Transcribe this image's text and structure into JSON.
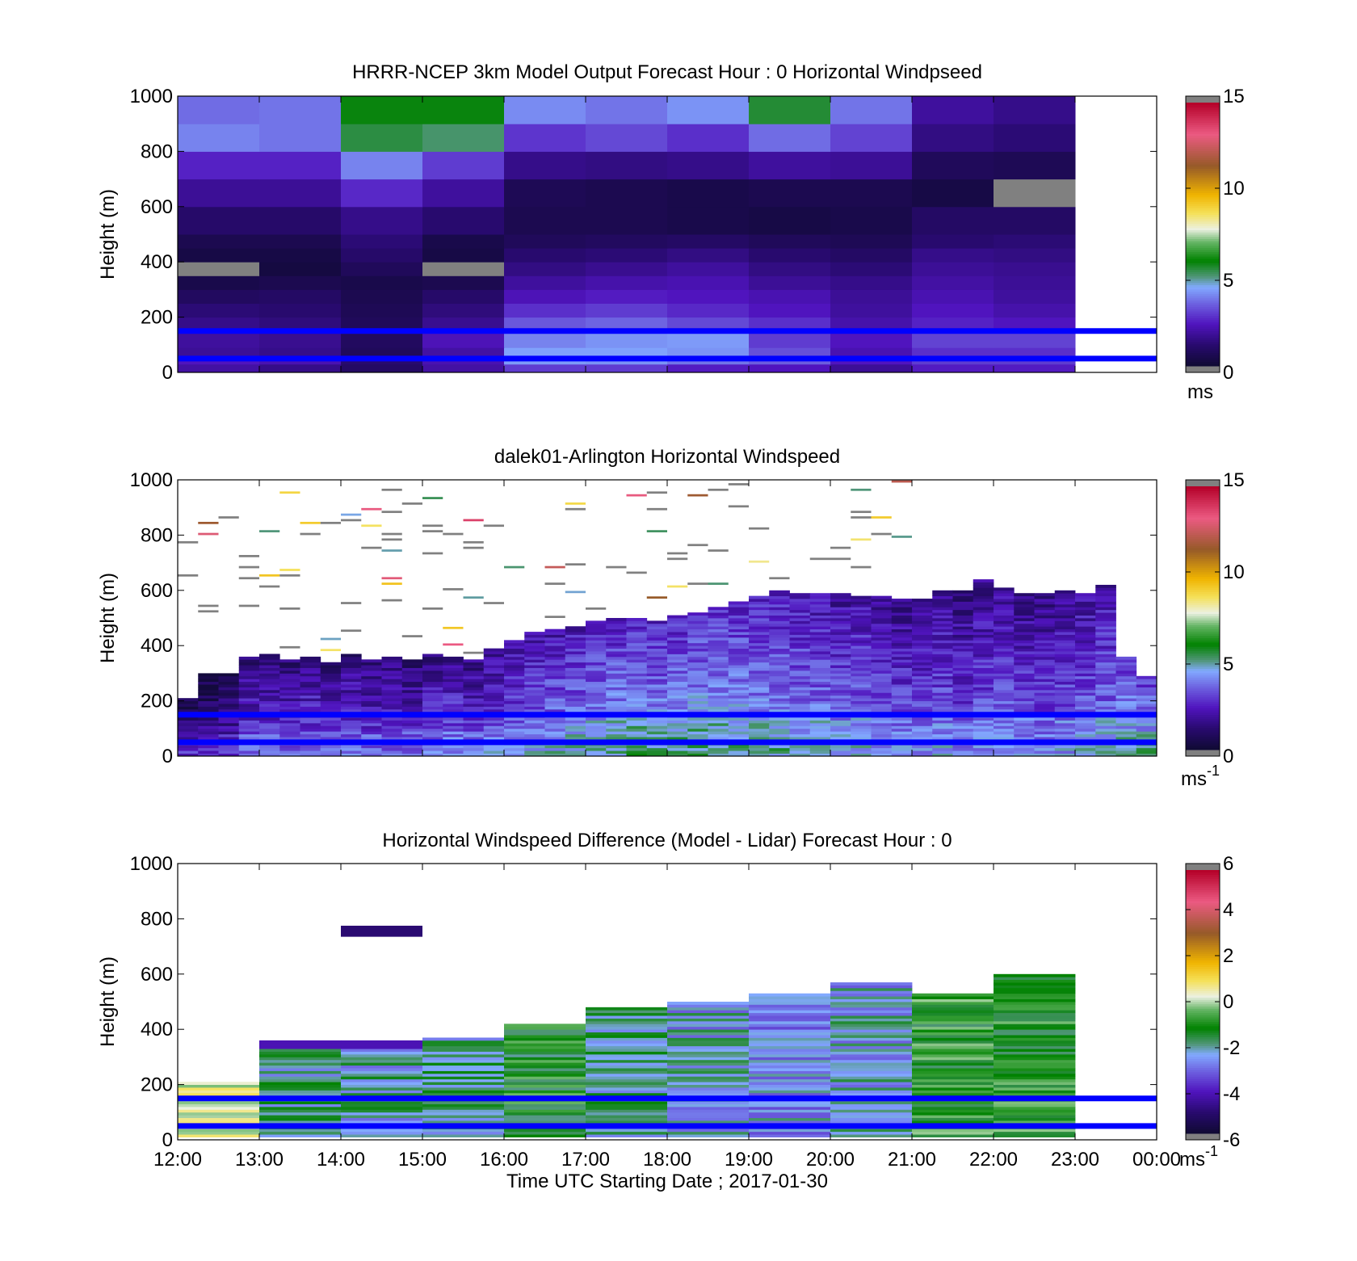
{
  "figure": {
    "xlabel": "Time UTC  Starting Date ; 2017-01-30",
    "x_ticks": [
      "12:00",
      "13:00",
      "14:00",
      "15:00",
      "16:00",
      "17:00",
      "18:00",
      "19:00",
      "20:00",
      "21:00",
      "22:00",
      "23:00",
      "00:00"
    ],
    "y_ticks": [
      "0",
      "200",
      "400",
      "600",
      "800",
      "1000"
    ],
    "reference_lines_m": [
      50,
      150
    ],
    "reference_line_color": "#0000ff"
  },
  "chart_data": [
    {
      "type": "heatmap",
      "title": "HRRR-NCEP 3km Model Output   Forecast Hour : 0 Horizontal Windpseed",
      "ylabel": "Height (m)",
      "xlim": [
        12,
        24
      ],
      "ylim": [
        0,
        1000
      ],
      "colorbar": {
        "range": [
          0,
          15
        ],
        "ticks": [
          "0",
          "5",
          "10",
          "15"
        ],
        "unit": "ms"
      },
      "x_hours": [
        12,
        13,
        14,
        15,
        16,
        17,
        18,
        19,
        20,
        21,
        22
      ],
      "y_bin_tops_m": [
        30,
        60,
        90,
        150,
        200,
        250,
        300,
        350,
        400,
        450,
        500,
        600,
        700,
        800,
        900,
        1000
      ],
      "values": [
        [
          2.0,
          1.6,
          1.0,
          2.0,
          3.0,
          3.0,
          2.5,
          2.4,
          1.8,
          2.5,
          2.5
        ],
        [
          2.4,
          2.2,
          1.2,
          2.2,
          4.3,
          4.2,
          3.8,
          3.5,
          2.4,
          3.0,
          3.0
        ],
        [
          1.8,
          1.6,
          0.8,
          2.0,
          4.4,
          4.4,
          4.2,
          3.3,
          2.2,
          2.8,
          2.8
        ],
        [
          1.9,
          1.7,
          0.9,
          2.3,
          4.0,
          4.2,
          4.3,
          3.0,
          2.4,
          3.1,
          3.1
        ],
        [
          1.6,
          1.4,
          0.8,
          1.7,
          3.4,
          3.6,
          3.2,
          2.8,
          2.1,
          2.6,
          2.4
        ],
        [
          1.3,
          1.2,
          0.7,
          1.4,
          2.8,
          3.0,
          2.7,
          2.4,
          1.9,
          2.4,
          2.1
        ],
        [
          0.9,
          1.0,
          0.6,
          1.1,
          2.3,
          2.5,
          2.4,
          2.2,
          1.8,
          2.2,
          1.9
        ],
        [
          0.5,
          0.6,
          0.5,
          0.6,
          1.9,
          2.1,
          2.2,
          1.8,
          1.6,
          2.0,
          1.8
        ],
        [
          0.0,
          0.3,
          0.8,
          0.0,
          1.5,
          1.7,
          1.9,
          1.5,
          1.3,
          1.8,
          1.7
        ],
        [
          0.4,
          0.4,
          1.1,
          0.4,
          1.2,
          1.3,
          1.5,
          1.2,
          1.0,
          1.6,
          1.5
        ],
        [
          0.6,
          0.6,
          1.3,
          0.5,
          0.8,
          0.9,
          1.0,
          0.8,
          0.7,
          1.2,
          1.3
        ],
        [
          1.1,
          1.1,
          1.6,
          1.2,
          0.6,
          0.6,
          0.5,
          0.4,
          0.5,
          1.0,
          1.0
        ],
        [
          1.8,
          1.8,
          2.7,
          1.9,
          0.7,
          0.6,
          0.5,
          0.6,
          0.6,
          0.4,
          0.0
        ],
        [
          2.6,
          2.6,
          4.0,
          3.0,
          1.6,
          1.5,
          1.6,
          1.9,
          1.8,
          0.8,
          0.7
        ],
        [
          4.0,
          3.8,
          5.5,
          5.2,
          2.9,
          3.2,
          2.8,
          3.7,
          3.1,
          1.5,
          1.3
        ],
        [
          3.7,
          3.8,
          5.9,
          5.9,
          4.1,
          3.8,
          4.2,
          5.6,
          3.8,
          1.9,
          1.6
        ]
      ]
    },
    {
      "type": "heatmap",
      "title": "dalek01-Arlington  Horizontal Windspeed",
      "ylabel": "Height (m)",
      "xlim": [
        12,
        24
      ],
      "ylim": [
        0,
        1000
      ],
      "colorbar": {
        "range": [
          0,
          15
        ],
        "ticks": [
          "0",
          "5",
          "10",
          "15"
        ],
        "unit": "ms",
        "unit_exponent": "-1"
      },
      "x_start_hours": [
        12.0,
        12.25,
        12.5,
        12.75,
        13.0,
        13.25,
        13.5,
        13.75,
        14.0,
        14.25,
        14.5,
        14.75,
        15.0,
        15.25,
        15.5,
        15.75,
        16.0,
        16.25,
        16.5,
        16.75,
        17.0,
        17.25,
        17.5,
        17.75,
        18.0,
        18.25,
        18.5,
        18.75,
        19.0,
        19.25,
        19.5,
        19.75,
        20.0,
        20.25,
        20.5,
        20.75,
        21.0,
        21.25,
        21.5,
        21.75,
        22.0,
        22.25,
        22.5,
        22.75,
        23.0,
        23.25,
        23.5,
        23.75
      ],
      "profile_top_m": [
        210,
        300,
        300,
        360,
        370,
        350,
        360,
        340,
        370,
        350,
        360,
        350,
        370,
        360,
        350,
        390,
        420,
        450,
        460,
        470,
        490,
        500,
        500,
        490,
        510,
        520,
        540,
        560,
        580,
        600,
        590,
        590,
        590,
        580,
        580,
        570,
        570,
        600,
        600,
        640,
        610,
        590,
        590,
        600,
        590,
        620,
        360,
        290
      ],
      "profile_mean_ms": [
        2.5,
        2.3,
        2.6,
        3.4,
        3.3,
        3.3,
        3.6,
        3.4,
        3.5,
        3.4,
        3.4,
        3.3,
        3.7,
        3.8,
        3.6,
        3.8,
        4.0,
        4.2,
        4.3,
        4.4,
        4.6,
        4.7,
        4.8,
        4.7,
        4.8,
        4.9,
        4.9,
        4.8,
        4.6,
        4.6,
        4.4,
        4.3,
        4.1,
        4.2,
        4.0,
        3.8,
        3.8,
        3.9,
        3.6,
        3.8,
        4.0,
        3.8,
        3.7,
        3.9,
        4.1,
        4.2,
        5.0,
        5.0
      ]
    },
    {
      "type": "heatmap",
      "title": "Horizontal Windspeed Difference (Model - Lidar) Forecast Hour : 0",
      "ylabel": "Height (m)",
      "xlim": [
        12,
        24
      ],
      "ylim": [
        0,
        1000
      ],
      "colorbar": {
        "range": [
          -6,
          6
        ],
        "ticks": [
          "-6",
          "-4",
          "-2",
          "0",
          "2",
          "4",
          "6"
        ],
        "unit": "ms",
        "unit_exponent": "-1"
      },
      "x_hours": [
        12,
        13,
        14,
        15,
        16,
        17,
        18,
        19,
        20,
        21,
        22
      ],
      "profile_top_m": [
        210,
        360,
        360,
        370,
        420,
        480,
        500,
        530,
        570,
        530,
        600
      ],
      "profile_mean_ms": [
        0.2,
        -2.0,
        -2.2,
        -2.0,
        -1.2,
        -2.0,
        -2.4,
        -2.6,
        -2.4,
        -1.0,
        -1.0
      ],
      "isolated_cells": [
        {
          "x_hour": 14,
          "x_end_hour": 15,
          "y_range_m": [
            735,
            775
          ],
          "value": -5.0
        }
      ]
    }
  ]
}
